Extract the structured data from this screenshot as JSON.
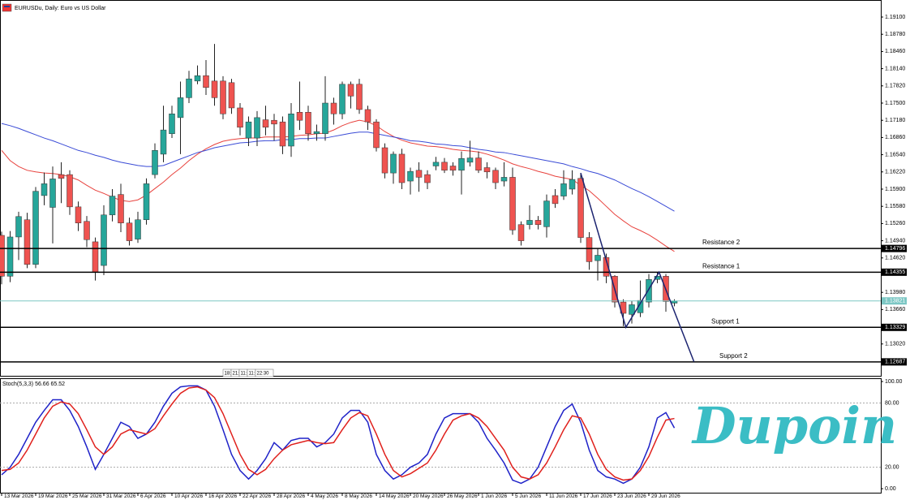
{
  "chart_data": [
    {
      "type": "candlestick",
      "title": "EURUSDu, Daily: Euro vs US Dollar",
      "categories": [
        "13 Mar 2026",
        null,
        null,
        null,
        "19 Mar 2026",
        null,
        null,
        null,
        "25 Mar 2026",
        null,
        null,
        null,
        "31 Mar 2026",
        null,
        null,
        null,
        "6 Apr 2026",
        null,
        null,
        null,
        "10 Apr 2026",
        null,
        null,
        null,
        "16 Apr 2026",
        null,
        null,
        null,
        "22 Apr 2026",
        null,
        null,
        null,
        "28 Apr 2026",
        null,
        null,
        null,
        "4 May 2026",
        null,
        null,
        null,
        "8 May 2026",
        null,
        null,
        null,
        "14 May 2026",
        null,
        null,
        null,
        "20 May 2026",
        null,
        null,
        null,
        "26 May 2026",
        null,
        null,
        null,
        "1 Jun 2026",
        null,
        null,
        null,
        "5 Jun 2026",
        null,
        null,
        null,
        "11 Jun 2026",
        null,
        null,
        null,
        "17 Jun 2026",
        null,
        null,
        null,
        "23 Jun 2026",
        null,
        null,
        null,
        "29 Jun 2026",
        null,
        null,
        null
      ],
      "open": [
        1.1504,
        1.1428,
        1.1501,
        1.1533,
        1.145,
        1.1578,
        1.1556,
        1.1617,
        1.1617,
        1.1557,
        1.153,
        1.1492,
        1.1448,
        1.1542,
        1.158,
        1.1527,
        1.1497,
        1.1533,
        1.1617,
        1.1655,
        1.1693,
        1.1723,
        1.176,
        1.1791,
        1.1801,
        1.1791,
        1.1791,
        1.1788,
        1.1741,
        1.1685,
        1.1685,
        1.1719,
        1.1718,
        1.1715,
        1.167,
        1.1733,
        1.1733,
        1.1693,
        1.1693,
        1.175,
        1.173,
        1.1785,
        1.1785,
        1.1738,
        1.1715,
        1.1667,
        1.162,
        1.1655,
        1.1605,
        1.1625,
        1.1617,
        1.1633,
        1.164,
        1.1633,
        1.1625,
        1.164,
        1.1648,
        1.163,
        1.1625,
        1.1605,
        1.1612,
        1.1524,
        1.1524,
        1.1532,
        1.152,
        1.1578,
        1.1577,
        1.159,
        1.161,
        1.15,
        1.1457,
        1.1463,
        1.1428,
        1.138,
        1.1357,
        1.136,
        1.138,
        1.1422,
        1.1428,
        1.1378
      ],
      "high": [
        1.1511,
        1.1512,
        1.1548,
        1.1546,
        1.1594,
        1.1621,
        1.1632,
        1.164,
        1.1625,
        1.1567,
        1.154,
        1.15,
        1.156,
        1.159,
        1.16,
        1.1537,
        1.1548,
        1.161,
        1.1675,
        1.1745,
        1.1745,
        1.179,
        1.181,
        1.182,
        1.183,
        1.186,
        1.18,
        1.1795,
        1.175,
        1.1725,
        1.1735,
        1.1745,
        1.173,
        1.1725,
        1.175,
        1.179,
        1.1745,
        1.171,
        1.18,
        1.176,
        1.179,
        1.179,
        1.1795,
        1.1745,
        1.172,
        1.1675,
        1.166,
        1.1665,
        1.163,
        1.164,
        1.1625,
        1.165,
        1.1648,
        1.164,
        1.166,
        1.168,
        1.166,
        1.164,
        1.163,
        1.164,
        1.163,
        1.153,
        1.156,
        1.154,
        1.158,
        1.159,
        1.1625,
        1.1625,
        1.162,
        1.151,
        1.148,
        1.147,
        1.143,
        1.1385,
        1.1382,
        1.142,
        1.1432,
        1.1435,
        1.1432,
        1.1385
      ],
      "low": [
        1.1413,
        1.1417,
        1.1458,
        1.1443,
        1.1443,
        1.156,
        1.1489,
        1.1564,
        1.1542,
        1.1512,
        1.1482,
        1.142,
        1.143,
        1.153,
        1.151,
        1.1485,
        1.149,
        1.1524,
        1.161,
        1.164,
        1.1685,
        1.1655,
        1.175,
        1.1785,
        1.1765,
        1.1745,
        1.172,
        1.173,
        1.169,
        1.167,
        1.167,
        1.169,
        1.168,
        1.1655,
        1.165,
        1.17,
        1.168,
        1.168,
        1.168,
        1.171,
        1.172,
        1.174,
        1.173,
        1.17,
        1.166,
        1.161,
        1.16,
        1.159,
        1.158,
        1.1585,
        1.159,
        1.1625,
        1.162,
        1.1615,
        1.158,
        1.1632,
        1.162,
        1.161,
        1.159,
        1.1595,
        1.1505,
        1.1485,
        1.1515,
        1.1515,
        1.15,
        1.1555,
        1.157,
        1.158,
        1.149,
        1.144,
        1.142,
        1.1415,
        1.137,
        1.1335,
        1.134,
        1.1352,
        1.137,
        1.1415,
        1.1362,
        1.1372
      ],
      "close": [
        1.1428,
        1.1501,
        1.1539,
        1.145,
        1.1586,
        1.16,
        1.1609,
        1.161,
        1.1557,
        1.1527,
        1.1496,
        1.1435,
        1.1542,
        1.1577,
        1.1527,
        1.1494,
        1.1533,
        1.16,
        1.1662,
        1.17,
        1.173,
        1.176,
        1.1795,
        1.1801,
        1.1779,
        1.176,
        1.173,
        1.1741,
        1.1705,
        1.1715,
        1.1723,
        1.1705,
        1.1711,
        1.167,
        1.173,
        1.1718,
        1.1693,
        1.1697,
        1.175,
        1.173,
        1.1785,
        1.1763,
        1.1738,
        1.1715,
        1.1667,
        1.162,
        1.1655,
        1.1602,
        1.1623,
        1.1612,
        1.1602,
        1.164,
        1.1625,
        1.1625,
        1.1647,
        1.1648,
        1.1625,
        1.1622,
        1.1602,
        1.1612,
        1.1514,
        1.1494,
        1.1532,
        1.1524,
        1.1568,
        1.1563,
        1.16,
        1.1608,
        1.15,
        1.1455,
        1.1467,
        1.1428,
        1.138,
        1.1359,
        1.1375,
        1.1383,
        1.1422,
        1.1428,
        1.1381,
        1.1382
      ],
      "up_color": "#26a69a",
      "down_color": "#ef5350",
      "series": [
        {
          "color": "#e8423d",
          "values": [
            1.1662,
            1.1643,
            1.1632,
            1.1625,
            1.1622,
            1.162,
            1.1619,
            1.1617,
            1.1613,
            1.1607,
            1.1597,
            1.1588,
            1.1582,
            1.1575,
            1.1569,
            1.1567,
            1.157,
            1.1579,
            1.1591,
            1.1603,
            1.1617,
            1.1629,
            1.1643,
            1.1655,
            1.1665,
            1.1673,
            1.1679,
            1.1682,
            1.1684,
            1.1685,
            1.1685,
            1.1687,
            1.1687,
            1.1687,
            1.1688,
            1.169,
            1.1691,
            1.1693,
            1.1694,
            1.17,
            1.1708,
            1.1714,
            1.1718,
            1.1715,
            1.1708,
            1.1697,
            1.1688,
            1.1681,
            1.1676,
            1.1673,
            1.167,
            1.1669,
            1.1667,
            1.1664,
            1.1662,
            1.1661,
            1.1659,
            1.1655,
            1.165,
            1.1644,
            1.1637,
            1.1632,
            1.1628,
            1.1623,
            1.1619,
            1.1614,
            1.1611,
            1.1608,
            1.1597,
            1.1587,
            1.1573,
            1.1558,
            1.1543,
            1.1531,
            1.152,
            1.1513,
            1.1505,
            1.1495,
            1.1484,
            1.1474
          ]
        },
        {
          "color": "#3a4bd6",
          "values": [
            1.1712,
            1.1708,
            1.1703,
            1.1697,
            1.1691,
            1.1685,
            1.168,
            1.1674,
            1.1668,
            1.1662,
            1.1658,
            1.1653,
            1.1649,
            1.1644,
            1.164,
            1.1637,
            1.1634,
            1.1632,
            1.1632,
            1.1634,
            1.164,
            1.1646,
            1.1652,
            1.1658,
            1.1662,
            1.1667,
            1.167,
            1.1673,
            1.1676,
            1.1677,
            1.1679,
            1.168,
            1.168,
            1.1682,
            1.1682,
            1.1684,
            1.1684,
            1.1685,
            1.1685,
            1.1688,
            1.1691,
            1.1694,
            1.1696,
            1.1696,
            1.1693,
            1.169,
            1.1687,
            1.1684,
            1.168,
            1.1679,
            1.1677,
            1.1674,
            1.1673,
            1.1671,
            1.167,
            1.1667,
            1.1664,
            1.1662,
            1.1659,
            1.1658,
            1.1655,
            1.1652,
            1.1649,
            1.1646,
            1.1643,
            1.164,
            1.1637,
            1.1632,
            1.1628,
            1.1623,
            1.1619,
            1.1613,
            1.1607,
            1.1599,
            1.1591,
            1.1584,
            1.1576,
            1.1567,
            1.1558,
            1.1549
          ]
        }
      ],
      "levels": [
        {
          "name": "Resistance 2",
          "value": 1.14796,
          "label": "1.14796"
        },
        {
          "name": "Resistance 1",
          "value": 1.14355,
          "label": "1.14355"
        },
        {
          "name": "Support 1",
          "value": 1.13329,
          "label": "1.13329"
        },
        {
          "name": "Support 2",
          "value": 1.12687,
          "label": "1.12687"
        }
      ],
      "current_price": {
        "value": 1.13821,
        "label": "1.13821",
        "color": "#7cc7c4"
      },
      "zigzag": {
        "color": "#1c2470",
        "x": [
          68,
          73.3,
          77.2,
          81.3
        ],
        "y": [
          1.162,
          1.1333,
          1.14355,
          1.1269
        ]
      },
      "timer": [
        "18:",
        "21:",
        "11:",
        "11:",
        "22:30"
      ],
      "ylim": [
        1.12428,
        1.19417
      ],
      "yticks": [
        {
          "value": 1.191,
          "label": "1.19100"
        },
        {
          "value": 1.1878,
          "label": "1.18780"
        },
        {
          "value": 1.1846,
          "label": "1.18460"
        },
        {
          "value": 1.1814,
          "label": "1.18140"
        },
        {
          "value": 1.1782,
          "label": "1.17820"
        },
        {
          "value": 1.175,
          "label": "1.17500"
        },
        {
          "value": 1.1718,
          "label": "1.17180"
        },
        {
          "value": 1.1686,
          "label": "1.16860"
        },
        {
          "value": 1.1654,
          "label": "1.16540"
        },
        {
          "value": 1.1622,
          "label": "1.16220"
        },
        {
          "value": 1.159,
          "label": "1.15900"
        },
        {
          "value": 1.1558,
          "label": "1.15580"
        },
        {
          "value": 1.1526,
          "label": "1.15260"
        },
        {
          "value": 1.1494,
          "label": "1.14940"
        },
        {
          "value": 1.1462,
          "label": "1.14620"
        },
        {
          "value": 1.1398,
          "label": "1.13980"
        },
        {
          "value": 1.1366,
          "label": "1.13660"
        },
        {
          "value": 1.1302,
          "label": "1.13020"
        }
      ],
      "watermark": "Dupoin"
    },
    {
      "type": "line",
      "title": "Stoch(5,3,3) 56.66 65.52",
      "series": [
        {
          "color": "#1f22c8",
          "values": [
            13,
            20,
            32,
            47,
            62,
            73,
            83,
            83,
            73,
            58,
            39,
            18,
            32,
            47,
            62,
            58,
            47,
            51,
            62,
            77,
            89,
            95,
            96,
            96,
            92,
            77,
            55,
            32,
            17,
            9,
            17,
            28,
            43,
            36,
            45,
            47,
            47,
            39,
            43,
            51,
            66,
            73,
            73,
            62,
            32,
            17,
            9,
            13,
            20,
            24,
            32,
            51,
            66,
            70,
            70,
            70,
            62,
            47,
            36,
            24,
            8,
            5,
            9,
            20,
            39,
            58,
            73,
            79,
            62,
            36,
            17,
            11,
            9,
            5,
            9,
            20,
            39,
            66,
            71,
            56.66
          ]
        },
        {
          "color": "#e0201c",
          "values": [
            17,
            18,
            24,
            36,
            51,
            66,
            77,
            81,
            79,
            70,
            55,
            39,
            32,
            39,
            51,
            55,
            53,
            51,
            56,
            68,
            79,
            89,
            94,
            95,
            92,
            85,
            70,
            51,
            32,
            18,
            13,
            18,
            28,
            36,
            41,
            43,
            45,
            43,
            42,
            43,
            55,
            66,
            71,
            68,
            51,
            32,
            17,
            11,
            14,
            19,
            24,
            36,
            51,
            64,
            68,
            70,
            66,
            58,
            47,
            36,
            20,
            11,
            9,
            13,
            24,
            39,
            55,
            68,
            66,
            51,
            32,
            18,
            11,
            8,
            9,
            17,
            30,
            48,
            64,
            65.52
          ]
        }
      ],
      "levels": [
        {
          "value": 80,
          "label": "80.00"
        },
        {
          "value": 20,
          "label": "20.00"
        }
      ],
      "ylim": [
        -4.5,
        102.3
      ],
      "yticks": [
        {
          "value": 100,
          "label": "100.00"
        },
        {
          "value": 0,
          "label": "0.00"
        }
      ]
    }
  ]
}
